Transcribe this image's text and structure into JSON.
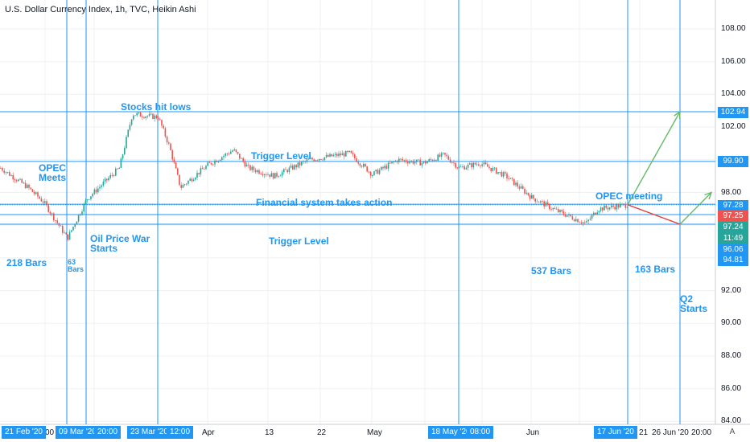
{
  "header": {
    "title": "U.S. Dollar Currency Index, 1h, TVC, Heikin Ashi"
  },
  "annotations": {
    "stocks_hit_lows": "Stocks hit lows",
    "opec_meets": "OPEC\nMeets",
    "trigger_level_upper": "Trigger Level",
    "financial_system": "Financial system takes action",
    "opec_meeting": "OPEC meeting",
    "oil_price_war": "Oil Price War\nStarts",
    "trigger_level_lower": "Trigger Level",
    "bars_218": "218 Bars",
    "bars_63": "63\nBars",
    "bars_537": "537 Bars",
    "bars_163": "163 Bars",
    "q2_starts": "Q2\nStarts"
  },
  "price_tags": [
    {
      "label": "102.94",
      "value": 102.94,
      "color": "#2196f3"
    },
    {
      "label": "99.90",
      "value": 99.9,
      "color": "#2196f3"
    },
    {
      "label": "97.28",
      "value": 97.28,
      "color": "#2196f3"
    },
    {
      "label": "97.25",
      "value": 97.25,
      "color": "#ef5350"
    },
    {
      "label": "97.24",
      "value": 97.24,
      "color": "#26a69a"
    },
    {
      "label": "11:49",
      "value": 96.7,
      "color": "#26a69a"
    },
    {
      "label": "96.06",
      "value": 96.06,
      "color": "#2196f3"
    },
    {
      "label": "94.81",
      "value": 94.81,
      "color": "#2196f3"
    }
  ],
  "x_axis": {
    "ticks": [
      "00",
      "Apr",
      "13",
      "22",
      "May",
      "Jun",
      "21",
      "26 Jun '20",
      "20:00"
    ],
    "tags": [
      "21 Feb '20",
      "09 Mar '20",
      "20:00",
      "23 Mar '20",
      "12:00",
      "18 May '20",
      "08:00",
      "17 Jun '20"
    ],
    "auto_label": "A"
  },
  "chart_data": {
    "type": "candlestick",
    "title": "U.S. Dollar Currency Index, 1h, TVC, Heikin Ashi",
    "ylim": [
      84,
      110
    ],
    "y_ticks": [
      84,
      86,
      88,
      90,
      92,
      94,
      96,
      98,
      100,
      102,
      104,
      106,
      108
    ],
    "x_ticks": [
      "21 Feb '20",
      "00",
      "09 Mar '20",
      "20:00",
      "23 Mar '20",
      "12:00",
      "Apr",
      "13",
      "22",
      "May",
      "18 May '20",
      "08:00",
      "Jun",
      "17 Jun '20",
      "21",
      "26 Jun '20",
      "20:00"
    ],
    "horizontal_levels": [
      102.94,
      99.9,
      97.28,
      96.65,
      96.06
    ],
    "price_path": [
      [
        "21 Feb '20",
        99.5
      ],
      [
        "28 Feb '20",
        98.3
      ],
      [
        "03 Mar '20",
        97.4
      ],
      [
        "09 Mar '20",
        95.2
      ],
      [
        "12 Mar '20",
        97.6
      ],
      [
        "17 Mar '20",
        99.5
      ],
      [
        "19 Mar '20",
        102.8
      ],
      [
        "23 Mar '20",
        102.6
      ],
      [
        "25 Mar '20",
        100.8
      ],
      [
        "27 Mar '20",
        98.3
      ],
      [
        "01 Apr '20",
        99.7
      ],
      [
        "06 Apr '20",
        100.6
      ],
      [
        "09 Apr '20",
        99.5
      ],
      [
        "14 Apr '20",
        99.0
      ],
      [
        "20 Apr '20",
        100.0
      ],
      [
        "27 Apr '20",
        100.4
      ],
      [
        "01 May '20",
        99.1
      ],
      [
        "06 May '20",
        100.0
      ],
      [
        "11 May '20",
        99.8
      ],
      [
        "15 May '20",
        100.3
      ],
      [
        "18 May '20",
        99.5
      ],
      [
        "22 May '20",
        99.8
      ],
      [
        "27 May '20",
        99.0
      ],
      [
        "01 Jun '20",
        97.7
      ],
      [
        "05 Jun '20",
        96.9
      ],
      [
        "10 Jun '20",
        96.1
      ],
      [
        "12 Jun '20",
        97.0
      ],
      [
        "17 Jun '20",
        97.25
      ]
    ],
    "projection": {
      "up_path": [
        [
          "17 Jun '20",
          97.25
        ],
        [
          "30 Jun '20",
          102.94
        ]
      ],
      "down_path": [
        [
          "17 Jun '20",
          97.25
        ],
        [
          "30 Jun '20",
          96.06
        ],
        [
          "02 Jul '20",
          98.0
        ]
      ]
    },
    "grid": true
  }
}
